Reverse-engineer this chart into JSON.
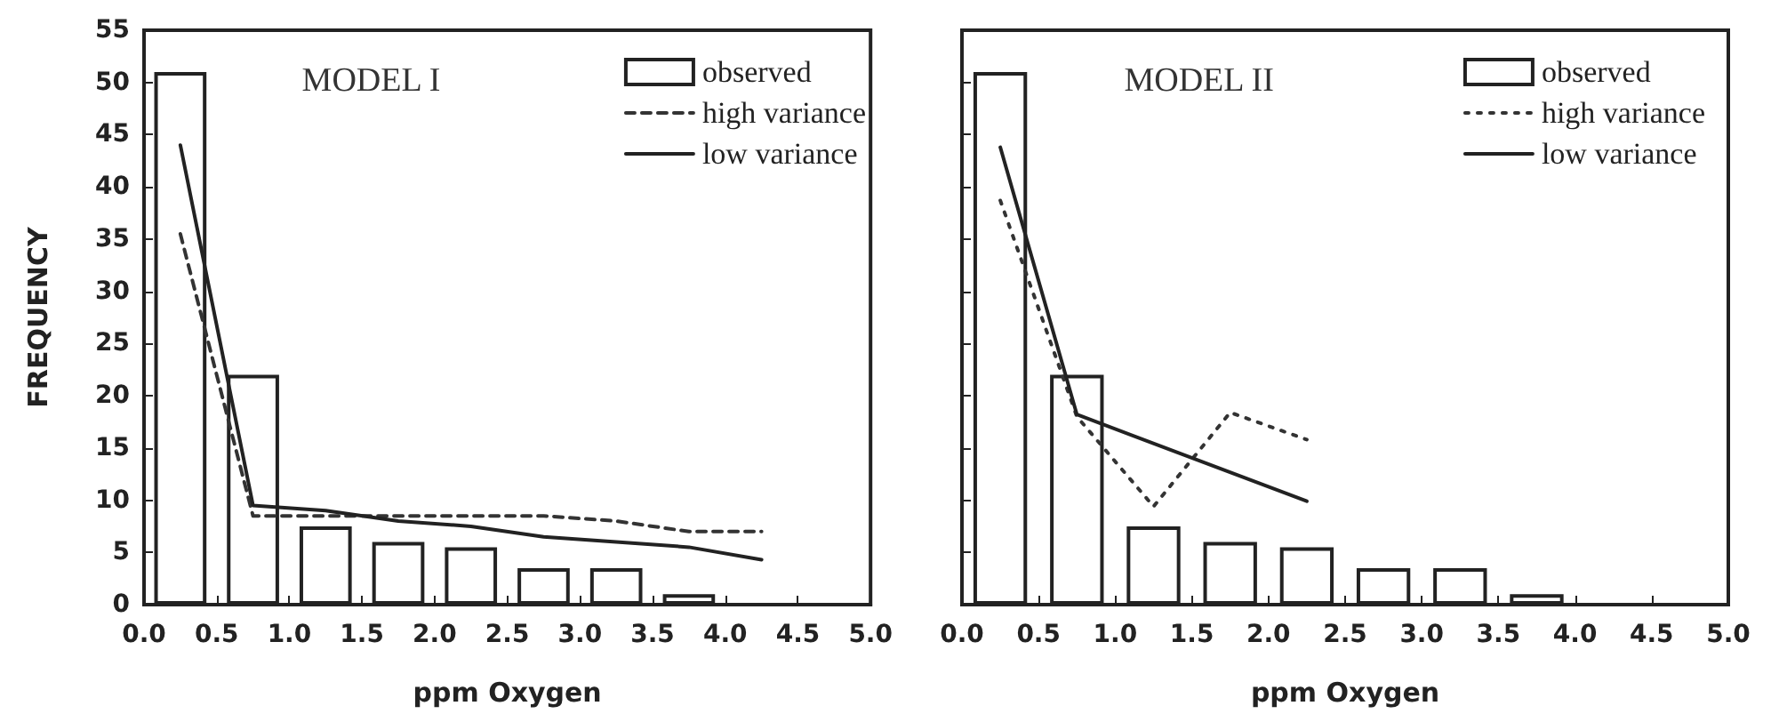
{
  "chart_data": [
    {
      "type": "bar",
      "title": "MODEL I",
      "xlabel": "ppm Oxygen",
      "ylabel": "FREQUENCY",
      "x": [
        0.25,
        0.75,
        1.25,
        1.75,
        2.25,
        2.75,
        3.25,
        3.75
      ],
      "series": [
        {
          "name": "observed",
          "color": "#222222",
          "values": [
            51,
            22,
            7.5,
            6,
            5.5,
            3.5,
            3.5,
            1
          ]
        },
        {
          "name": "high variance",
          "type": "line",
          "line_style": "dashed",
          "color": "#333333",
          "x": [
            0.25,
            0.75,
            1.25,
            1.75,
            2.25,
            2.75,
            3.25,
            3.75,
            4.25
          ],
          "values": [
            35.5,
            8.5,
            8.5,
            8.5,
            8.5,
            8.5,
            8,
            7,
            7
          ]
        },
        {
          "name": "low variance",
          "type": "line",
          "line_style": "solid",
          "color": "#222222",
          "x": [
            0.25,
            0.75,
            1.25,
            1.75,
            2.25,
            2.75,
            3.25,
            3.75,
            4.25
          ],
          "values": [
            44,
            9.5,
            9,
            8,
            7.5,
            6.5,
            6,
            5.5,
            4.3
          ]
        }
      ],
      "xlim": [
        0,
        5
      ],
      "xticks": [
        {
          "value": 0,
          "label": "0.0"
        },
        {
          "value": 0.5,
          "label": "0.5"
        },
        {
          "value": 1,
          "label": "1.0"
        },
        {
          "value": 1.5,
          "label": "1.5"
        },
        {
          "value": 2,
          "label": "2.0"
        },
        {
          "value": 2.5,
          "label": "2.5"
        },
        {
          "value": 3,
          "label": "3.0"
        },
        {
          "value": 3.5,
          "label": "3.5"
        },
        {
          "value": 4,
          "label": "4.0"
        },
        {
          "value": 4.5,
          "label": "4.5"
        },
        {
          "value": 5,
          "label": "5.0"
        }
      ],
      "ylim": [
        0,
        55
      ],
      "yticks": [
        0,
        5,
        10,
        15,
        20,
        25,
        30,
        35,
        40,
        45,
        50,
        55
      ],
      "legend": "top right",
      "grid": false,
      "marker": "none"
    },
    {
      "type": "bar",
      "title": "MODEL II",
      "xlabel": "ppm Oxygen",
      "x": [
        0.25,
        0.75,
        1.25,
        1.75,
        2.25,
        2.75,
        3.25,
        3.75
      ],
      "series": [
        {
          "name": "observed",
          "color": "#222222",
          "values": [
            51,
            22,
            7.5,
            6,
            5.5,
            3.5,
            3.5,
            1
          ]
        },
        {
          "name": "high variance",
          "type": "line",
          "line_style": "dotted",
          "color": "#333333",
          "x": [
            0.25,
            0.75,
            1.25,
            1.75,
            2.25
          ],
          "values": [
            38.7,
            18,
            9.4,
            18.4,
            15.8
          ]
        },
        {
          "name": "low variance",
          "type": "line",
          "line_style": "solid",
          "color": "#222222",
          "x": [
            0.25,
            0.75,
            2.25
          ],
          "values": [
            43.8,
            18.2,
            9.9
          ]
        }
      ],
      "xlim": [
        0,
        5
      ],
      "xticks": [
        {
          "value": 0,
          "label": "0.0"
        },
        {
          "value": 0.5,
          "label": "0.5"
        },
        {
          "value": 1,
          "label": "1.0"
        },
        {
          "value": 1.5,
          "label": "1.5"
        },
        {
          "value": 2,
          "label": "2.0"
        },
        {
          "value": 2.5,
          "label": "2.5"
        },
        {
          "value": 3,
          "label": "3.0"
        },
        {
          "value": 3.5,
          "label": "3.5"
        },
        {
          "value": 4,
          "label": "4.0"
        },
        {
          "value": 4.5,
          "label": "4.5"
        },
        {
          "value": 5,
          "label": "5.0"
        }
      ],
      "ylim": [
        0,
        55
      ],
      "yticks": [
        0,
        5,
        10,
        15,
        20,
        25,
        30,
        35,
        40,
        45,
        50,
        55
      ],
      "tick_labels": "x",
      "legend": "top right",
      "grid": false,
      "marker": "none"
    }
  ]
}
